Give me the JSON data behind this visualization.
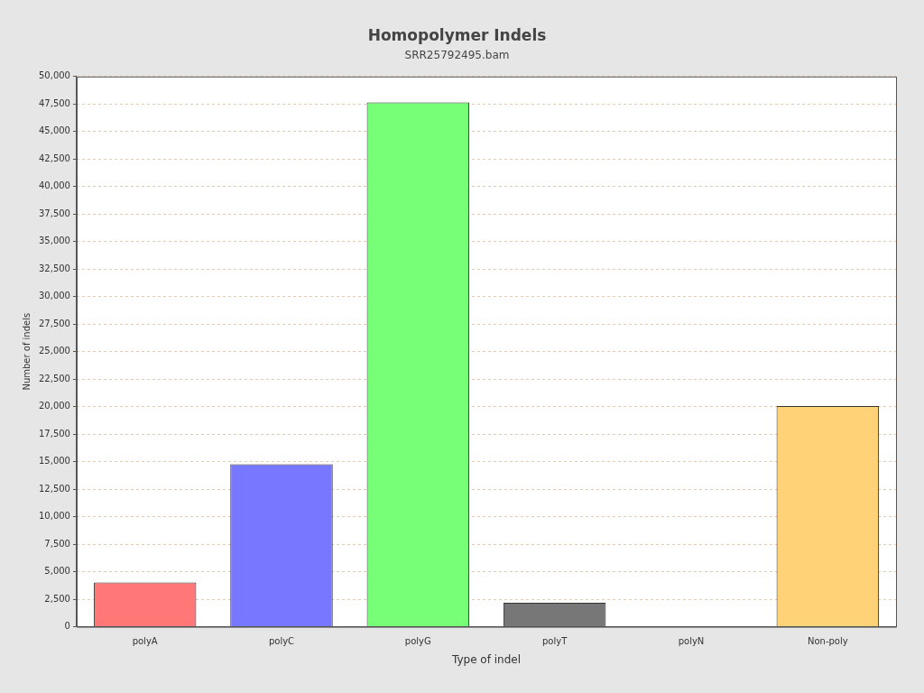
{
  "chart_data": {
    "type": "bar",
    "title": "Homopolymer Indels",
    "subtitle": "SRR25792495.bam",
    "xlabel": "Type of indel",
    "ylabel": "Number of indels",
    "categories": [
      "polyA",
      "polyC",
      "polyG",
      "polyT",
      "polyN",
      "Non-poly"
    ],
    "values": [
      4030,
      14770,
      47650,
      2180,
      20,
      20050
    ],
    "colors": [
      "#ff7777",
      "#7777ff",
      "#77ff77",
      "#777777",
      "#777777",
      "#ffd277"
    ],
    "ylim": [
      0,
      50000
    ],
    "yticks": [
      0,
      {
        "value": 2500,
        "label": "2,500"
      },
      {
        "value": 5000,
        "label": "5,000"
      },
      {
        "value": 7500,
        "label": "7,500"
      },
      {
        "value": 10000,
        "label": "10,000"
      },
      {
        "value": 12500,
        "label": "12,500"
      },
      {
        "value": 15000,
        "label": "15,000"
      },
      {
        "value": 17500,
        "label": "17,500"
      },
      {
        "value": 20000,
        "label": "20,000"
      },
      {
        "value": 22500,
        "label": "22,500"
      },
      {
        "value": 25000,
        "label": "25,000"
      },
      {
        "value": 27500,
        "label": "27,500"
      },
      {
        "value": 30000,
        "label": "30,000"
      },
      {
        "value": 32500,
        "label": "32,500"
      },
      {
        "value": 35000,
        "label": "35,000"
      },
      {
        "value": 37500,
        "label": "37,500"
      },
      {
        "value": 40000,
        "label": "40,000"
      },
      {
        "value": 42500,
        "label": "42,500"
      },
      {
        "value": 45000,
        "label": "45,000"
      },
      {
        "value": 47500,
        "label": "47,500"
      },
      {
        "value": 50000,
        "label": "50,000"
      }
    ],
    "grid": "y",
    "legend": false
  }
}
